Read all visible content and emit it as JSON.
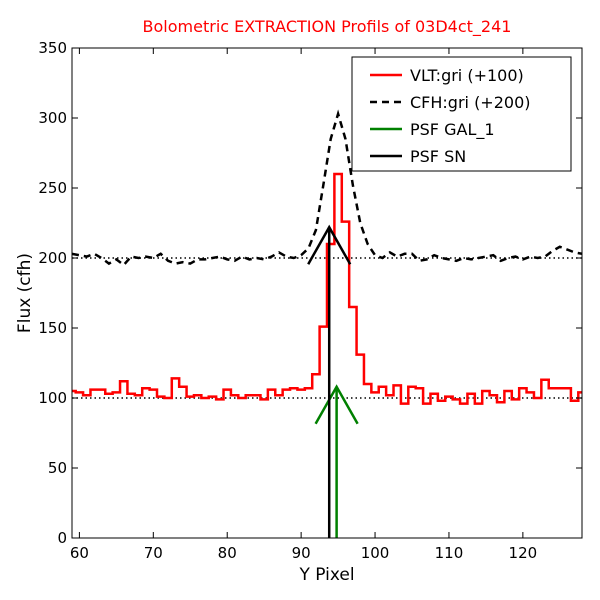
{
  "chart_data": {
    "type": "line",
    "title": "Bolometric EXTRACTION Profils of 03D4ct_241",
    "title_color": "#ff0000",
    "xlabel": "Y Pixel",
    "ylabel": "Flux (cfh)",
    "xlim": [
      59,
      128
    ],
    "ylim": [
      0,
      350
    ],
    "xticks": [
      60,
      70,
      80,
      90,
      100,
      110,
      120
    ],
    "yticks": [
      0,
      50,
      100,
      150,
      200,
      250,
      300,
      350
    ],
    "grid": false,
    "legend_position": "top-right",
    "reference_lines": [
      {
        "y": 100,
        "style": "dotted",
        "color": "#000000"
      },
      {
        "y": 200,
        "style": "dotted",
        "color": "#000000"
      }
    ],
    "series": [
      {
        "name": "VLT:gri (+100)",
        "style": "steps",
        "color": "#ff0000",
        "x": [
          59,
          60,
          61,
          62,
          63,
          64,
          65,
          66,
          67,
          68,
          69,
          70,
          71,
          72,
          73,
          74,
          75,
          76,
          77,
          78,
          79,
          80,
          81,
          82,
          83,
          84,
          85,
          86,
          87,
          88,
          89,
          90,
          91,
          92,
          93,
          94,
          95,
          96,
          97,
          98,
          99,
          100,
          101,
          102,
          103,
          104,
          105,
          106,
          107,
          108,
          109,
          110,
          111,
          112,
          113,
          114,
          115,
          116,
          117,
          118,
          119,
          120,
          121,
          122,
          123,
          124,
          125,
          126,
          127,
          128
        ],
        "y": [
          105,
          104,
          102,
          106,
          106,
          103,
          104,
          112,
          103,
          102,
          107,
          106,
          101,
          100,
          114,
          108,
          101,
          102,
          100,
          101,
          99,
          106,
          102,
          100,
          102,
          102,
          99,
          106,
          102,
          106,
          107,
          106,
          107,
          117,
          151,
          210,
          260,
          226,
          165,
          131,
          110,
          104,
          108,
          102,
          109,
          96,
          108,
          107,
          96,
          103,
          98,
          101,
          99,
          96,
          103,
          96,
          105,
          102,
          97,
          105,
          99,
          107,
          104,
          100,
          113,
          107,
          107,
          107,
          98,
          104
        ]
      },
      {
        "name": "CFH:gri (+200)",
        "style": "dashed",
        "color": "#000000",
        "x": [
          59,
          60,
          61,
          62,
          63,
          64,
          65,
          66,
          67,
          68,
          69,
          70,
          71,
          72,
          73,
          74,
          75,
          76,
          77,
          78,
          79,
          80,
          81,
          82,
          83,
          84,
          85,
          86,
          87,
          88,
          89,
          90,
          91,
          92,
          93,
          94,
          95,
          96,
          97,
          98,
          99,
          100,
          101,
          102,
          103,
          104,
          105,
          106,
          107,
          108,
          109,
          110,
          111,
          112,
          113,
          114,
          115,
          116,
          117,
          118,
          119,
          120,
          121,
          122,
          123,
          124,
          125,
          126,
          127,
          128
        ],
        "y": [
          203,
          202,
          201,
          203,
          200,
          196,
          199,
          195,
          201,
          200,
          201,
          200,
          203,
          198,
          196,
          197,
          196,
          199,
          199,
          200,
          201,
          199,
          198,
          201,
          199,
          200,
          199,
          201,
          204,
          201,
          200,
          202,
          207,
          220,
          252,
          285,
          303,
          285,
          252,
          225,
          210,
          202,
          200,
          204,
          201,
          203,
          203,
          198,
          199,
          202,
          200,
          199,
          198,
          200,
          199,
          200,
          201,
          202,
          198,
          200,
          201,
          199,
          201,
          200,
          201,
          205,
          208,
          206,
          204,
          203
        ]
      },
      {
        "name": "PSF GAL_1",
        "style": "arrow",
        "color": "#008000",
        "x_position": 94.8,
        "y_from": 0,
        "y_to": 108
      },
      {
        "name": "PSF SN",
        "style": "arrow",
        "color": "#000000",
        "x_position": 93.8,
        "y_from": 0,
        "y_to": 222
      }
    ]
  }
}
